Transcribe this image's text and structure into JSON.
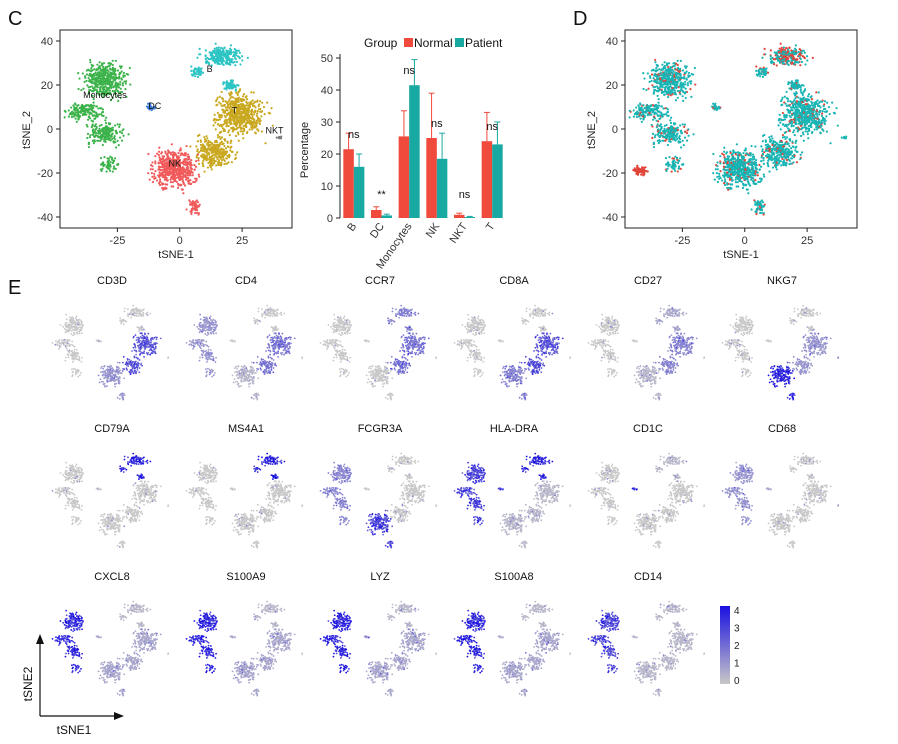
{
  "panels": {
    "c_label": "C",
    "d_label": "D",
    "e_label": "E"
  },
  "tsne_c": {
    "xlabel": "tSNE-1",
    "ylabel": "tSNE_2",
    "xticks": [
      -25,
      0,
      25
    ],
    "yticks": [
      40,
      20,
      0,
      -20,
      -40
    ],
    "xlim": [
      -48,
      45
    ],
    "ylim": [
      -45,
      45
    ],
    "clusters": [
      {
        "name": "B",
        "color": "#2ec4c4",
        "label_x": 12,
        "label_y": 26
      },
      {
        "name": "Monocytes",
        "color": "#3cb34a",
        "label_x": -30,
        "label_y": 14
      },
      {
        "name": "DC",
        "color": "#3a7ad8",
        "label_x": -10,
        "label_y": 9
      },
      {
        "name": "T",
        "color": "#c9a820",
        "label_x": 22,
        "label_y": 7
      },
      {
        "name": "NK",
        "color": "#f15a5a",
        "label_x": -2,
        "label_y": -17
      },
      {
        "name": "NKT",
        "color": "#777777",
        "label_x": 38,
        "label_y": -2
      }
    ]
  },
  "bar_chart": {
    "legend_title": "Group",
    "ylabel": "Percentage",
    "yticks": [
      0,
      10,
      20,
      30,
      40,
      50
    ],
    "ylim": [
      0,
      50
    ],
    "categories": [
      "B",
      "DC",
      "Monocytes",
      "NK",
      "NKT",
      "T"
    ],
    "series": [
      {
        "name": "Normal",
        "color": "#f04a3c",
        "values": [
          21.5,
          2.5,
          25.5,
          25,
          1,
          24
        ],
        "errors": [
          5,
          1,
          8,
          14,
          0.5,
          9
        ]
      },
      {
        "name": "Patient",
        "color": "#18a9a3",
        "values": [
          16,
          0.8,
          41.5,
          18.5,
          0.3,
          23
        ],
        "errors": [
          4,
          0.4,
          8,
          8,
          0.2,
          7
        ]
      }
    ],
    "significance": [
      "ns",
      "**",
      "ns",
      "ns",
      "ns",
      "ns"
    ]
  },
  "tsne_d": {
    "xlabel": "tSNE-1",
    "ylabel": "tSNE_2",
    "xticks": [
      -25,
      0,
      25
    ],
    "yticks": [
      40,
      20,
      0,
      -20,
      -40
    ],
    "colors": {
      "patient": "#18b4b4",
      "normal": "#e0453a"
    }
  },
  "feature_plots": {
    "genes": [
      "CD3D",
      "CD4",
      "CCR7",
      "CD8A",
      "CD27",
      "NKG7",
      "CD79A",
      "MS4A1",
      "FCGR3A",
      "HLA-DRA",
      "CD1C",
      "CD68",
      "CXCL8",
      "S100A9",
      "LYZ",
      "S100A8",
      "CD14"
    ],
    "colorbar_ticks": [
      "4",
      "3",
      "2",
      "1",
      "0"
    ],
    "colorbar_low": "#c8c8c8",
    "colorbar_high": "#1a10e0",
    "axis_x": "tSNE1",
    "axis_y": "tSNE2"
  }
}
